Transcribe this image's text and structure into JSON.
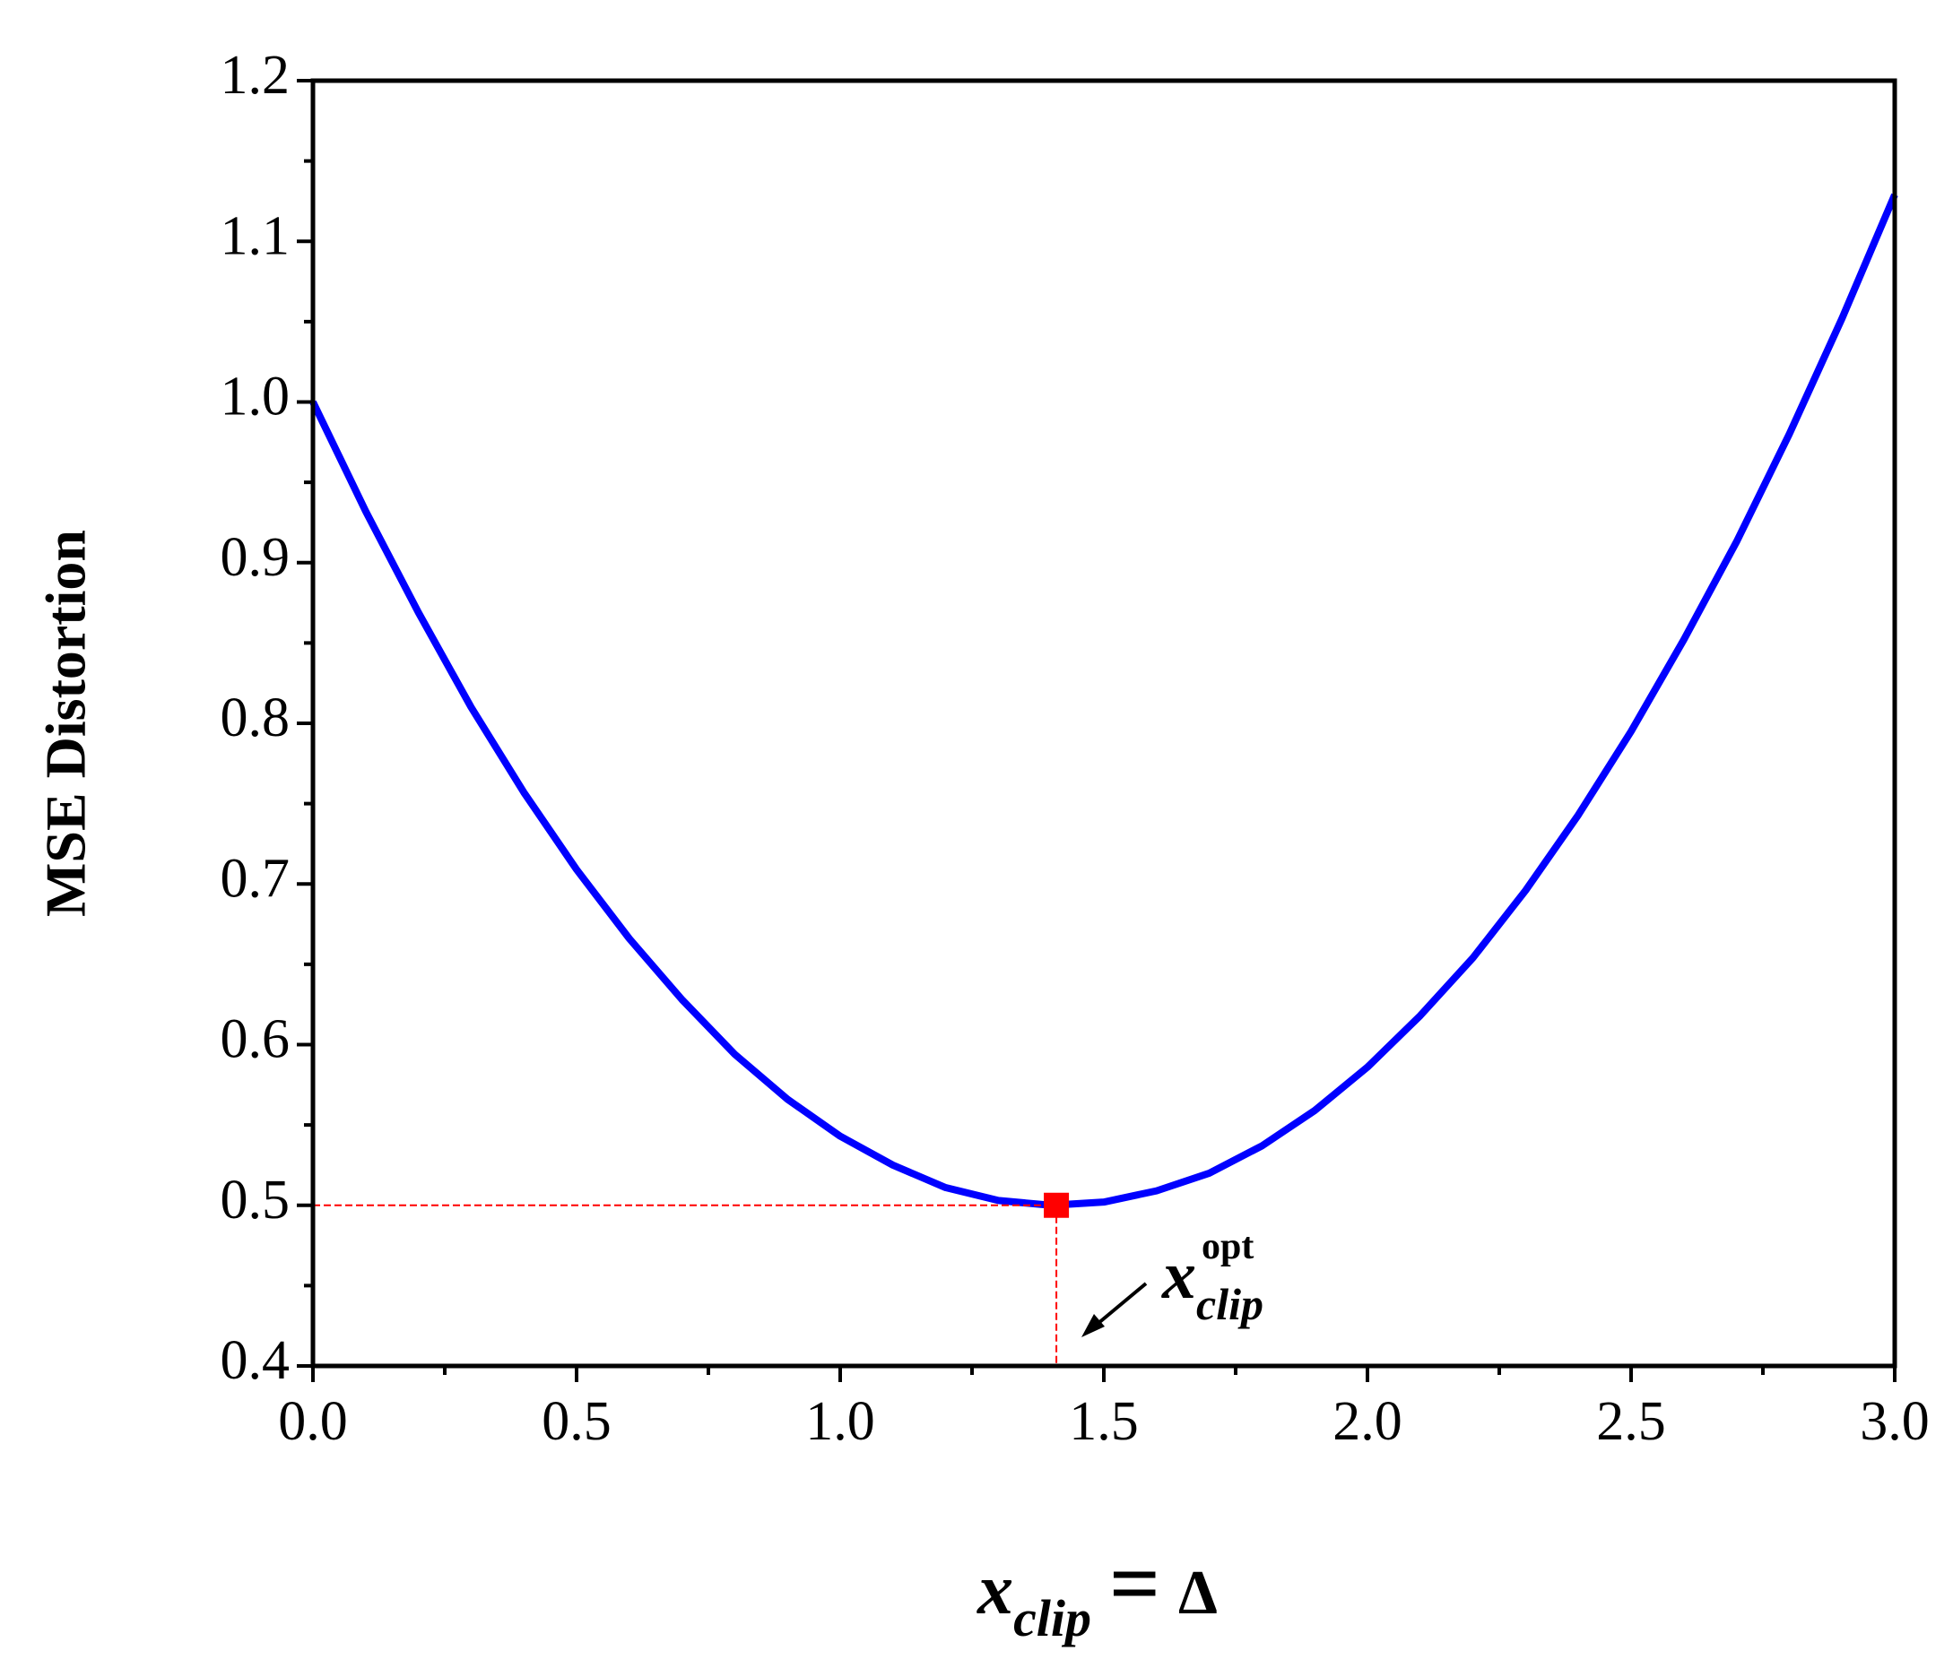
{
  "chart_data": {
    "type": "line",
    "ylabel": "MSE Distortion",
    "xlabel": {
      "main": "x",
      "sub": "clip",
      "eq": "=",
      "rhs": "Δ"
    },
    "annotation": {
      "main": "x",
      "sub": "clip",
      "sup": "opt"
    },
    "x": [
      0,
      0.1,
      0.2,
      0.3,
      0.4,
      0.5,
      0.6,
      0.7,
      0.8,
      0.9,
      1.0,
      1.1,
      1.2,
      1.3,
      1.4,
      1.5,
      1.6,
      1.7,
      1.8,
      1.9,
      2.0,
      2.1,
      2.2,
      2.3,
      2.4,
      2.5,
      2.6,
      2.7,
      2.8,
      2.9,
      3.0
    ],
    "values": [
      1.0,
      0.932,
      0.869,
      0.81,
      0.757,
      0.709,
      0.666,
      0.628,
      0.594,
      0.566,
      0.543,
      0.525,
      0.511,
      0.503,
      0.5,
      0.502,
      0.509,
      0.52,
      0.537,
      0.559,
      0.586,
      0.618,
      0.654,
      0.696,
      0.743,
      0.795,
      0.852,
      0.913,
      0.98,
      1.052,
      1.129
    ],
    "color": "#0000ff",
    "marker": {
      "x": 1.41,
      "y": 0.5,
      "color": "#ff0000"
    },
    "xlim": [
      0,
      3
    ],
    "ylim": [
      0.4,
      1.2
    ],
    "xticks": [
      {
        "value": 0,
        "label": "0.0"
      },
      0.5,
      {
        "value": 1,
        "label": "1.0"
      },
      1.5,
      {
        "value": 2,
        "label": "2.0"
      },
      2.5,
      {
        "value": 3,
        "label": "3.0"
      }
    ],
    "yticks": [
      0.4,
      0.5,
      0.6,
      0.7,
      0.8,
      0.9,
      {
        "value": 1,
        "label": "1.0"
      },
      1.1,
      1.2
    ]
  }
}
